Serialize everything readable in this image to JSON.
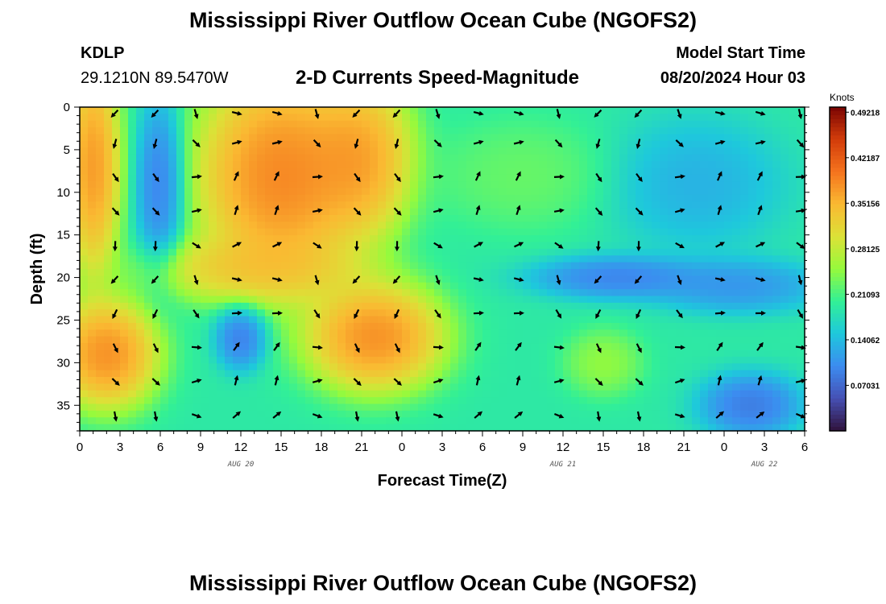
{
  "header": {
    "title": "Mississippi River Outflow Ocean Cube (NGOFS2)",
    "station_id": "KDLP",
    "station_coords": "29.1210N  89.5470W",
    "subtitle": "2-D Currents Speed-Magnitude",
    "model_start_label": "Model Start Time",
    "model_start_value": "08/20/2024 Hour 03"
  },
  "footer": {
    "title": "Mississippi River Outflow Ocean Cube (NGOFS2)"
  },
  "chart_data": {
    "type": "heatmap",
    "xlabel": "Forecast Time(Z)",
    "ylabel": "Depth (ft)",
    "x_tick_labels": [
      "0",
      "3",
      "6",
      "9",
      "12",
      "15",
      "18",
      "21",
      "0",
      "3",
      "6",
      "9",
      "12",
      "15",
      "18",
      "21",
      "0",
      "3",
      "6"
    ],
    "x_range_hours": [
      0,
      54
    ],
    "date_labels": [
      {
        "text": "AUG 20",
        "hour": 12
      },
      {
        "text": "AUG 21",
        "hour": 36
      },
      {
        "text": "AUG 22",
        "hour": 51
      }
    ],
    "y_ticks": [
      0,
      5,
      10,
      15,
      20,
      25,
      30,
      35
    ],
    "y_range": [
      0,
      38
    ],
    "y_inverted": true,
    "colorbar": {
      "unit_label": "Knots",
      "tick_labels": [
        "0.49218",
        "0.42187",
        "0.35156",
        "0.28125",
        "0.21093",
        "0.14062",
        "0.07031"
      ],
      "range": [
        0,
        0.5
      ],
      "colormap": "turbo"
    },
    "vector_grid": {
      "hours": [
        3,
        6,
        9,
        12,
        15,
        18,
        21,
        24,
        27,
        30,
        33,
        36,
        39,
        42,
        45,
        48,
        51,
        54
      ],
      "depths": [
        0.5,
        4,
        8,
        12,
        16,
        20,
        24,
        28,
        32,
        36
      ]
    },
    "speed_features": [
      {
        "hour": 1,
        "depth": 7,
        "speed": 0.44,
        "sx": 1.6,
        "sy": 10
      },
      {
        "hour": 6,
        "depth": 9,
        "speed": 0.05,
        "sx": 1.4,
        "sy": 8
      },
      {
        "hour": 15,
        "depth": 8,
        "speed": 0.46,
        "sx": 5,
        "sy": 10
      },
      {
        "hour": 21,
        "depth": 6,
        "speed": 0.42,
        "sx": 3,
        "sy": 7
      },
      {
        "hour": 13,
        "depth": 19,
        "speed": 0.37,
        "sx": 6,
        "sy": 3
      },
      {
        "hour": 2,
        "depth": 29,
        "speed": 0.45,
        "sx": 3,
        "sy": 5
      },
      {
        "hour": 12,
        "depth": 27,
        "speed": 0.05,
        "sx": 1.5,
        "sy": 3
      },
      {
        "hour": 22,
        "depth": 27,
        "speed": 0.45,
        "sx": 4,
        "sy": 5
      },
      {
        "hour": 33,
        "depth": 8,
        "speed": 0.24,
        "sx": 5,
        "sy": 5
      },
      {
        "hour": 40,
        "depth": 20,
        "speed": 0.06,
        "sx": 5,
        "sy": 2
      },
      {
        "hour": 49,
        "depth": 21,
        "speed": 0.08,
        "sx": 5,
        "sy": 2.5
      },
      {
        "hour": 39,
        "depth": 30,
        "speed": 0.27,
        "sx": 2.2,
        "sy": 3
      },
      {
        "hour": 50,
        "depth": 35,
        "speed": 0.05,
        "sx": 3,
        "sy": 3
      },
      {
        "hour": 46,
        "depth": 9,
        "speed": 0.11,
        "sx": 5,
        "sy": 6
      }
    ]
  }
}
